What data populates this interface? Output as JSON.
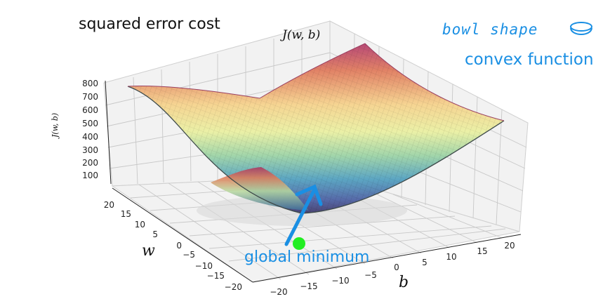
{
  "labels": {
    "title": "squared error cost",
    "surface_title": "J(w, b)",
    "annotation_bowl": "bowl shape",
    "annotation_convex": "convex function",
    "annotation_minimum": "global minimum",
    "axis_w": "w",
    "axis_b": "b",
    "axis_j": "J(w, b)"
  },
  "ticks": {
    "j": [
      "100",
      "200",
      "300",
      "400",
      "500",
      "600",
      "700",
      "800"
    ],
    "w": [
      "20",
      "15",
      "10",
      "5",
      "0",
      "−5",
      "−10",
      "−15",
      "−20"
    ],
    "b": [
      "−20",
      "−15",
      "−10",
      "−5",
      "0",
      "5",
      "10",
      "15",
      "20"
    ]
  },
  "colors": {
    "annotation": "#1a8fe3",
    "minimum_point": "#22ee22",
    "grid": "#c8c8c8"
  },
  "icons": {
    "bowl": "bowl-icon",
    "arrow": "arrow-icon"
  }
}
